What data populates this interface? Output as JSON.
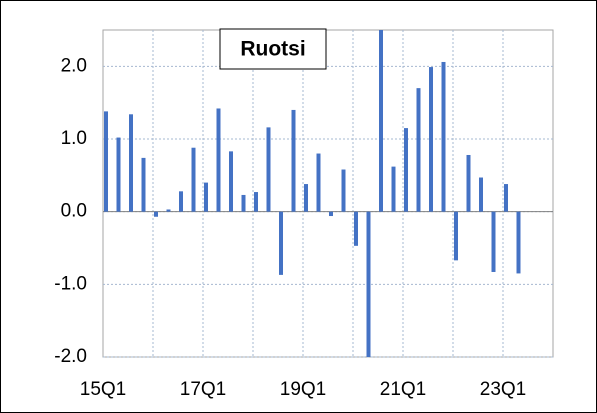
{
  "chart_data": {
    "type": "bar",
    "title": "Ruotsi",
    "categories": [
      "15Q1",
      null,
      null,
      null,
      null,
      null,
      null,
      null,
      "17Q1",
      null,
      null,
      null,
      null,
      null,
      null,
      null,
      "19Q1",
      null,
      null,
      null,
      null,
      null,
      null,
      null,
      "21Q1",
      null,
      null,
      null,
      null,
      null,
      null,
      null,
      "23Q1",
      null,
      null,
      null
    ],
    "values": [
      1.38,
      1.02,
      1.34,
      0.74,
      -0.07,
      0.03,
      0.28,
      0.88,
      0.4,
      1.42,
      0.83,
      0.23,
      0.27,
      1.16,
      -0.87,
      1.4,
      0.38,
      0.8,
      -0.06,
      0.58,
      -0.47,
      -2.0,
      2.5,
      0.62,
      1.15,
      1.7,
      1.99,
      2.06,
      -0.67,
      0.78,
      0.47,
      -0.83,
      0.38,
      -0.85,
      null,
      null
    ],
    "color": "#4472c4",
    "ylim": [
      -2,
      2.5
    ],
    "yticks": [
      {
        "value": -2,
        "label": "-2.0"
      },
      {
        "value": -1,
        "label": "-1.0"
      },
      {
        "value": 0,
        "label": "0.0"
      },
      {
        "value": 1,
        "label": "1.0"
      },
      {
        "value": 2,
        "label": "2.0"
      }
    ],
    "grid": true
  }
}
